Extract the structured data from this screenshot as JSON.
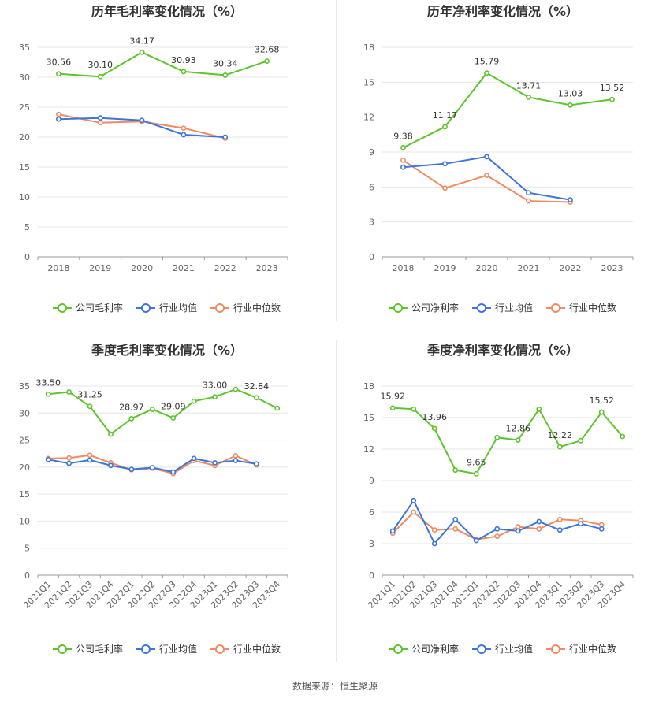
{
  "source": "数据来源：恒生聚源",
  "colors": {
    "company": "#5bc52b",
    "avg": "#3a74dc",
    "median": "#f28a61"
  },
  "chart_data": [
    {
      "type": "line",
      "title": "历年毛利率变化情况（%）",
      "categories": [
        "2018",
        "2019",
        "2020",
        "2021",
        "2022",
        "2023"
      ],
      "ylim": [
        0,
        35
      ],
      "yticks": [
        0,
        5,
        10,
        15,
        20,
        25,
        30,
        35
      ],
      "grid": true,
      "legend_position": "bottom",
      "series": [
        {
          "name": "公司毛利率",
          "values": [
            30.56,
            30.1,
            34.17,
            30.93,
            30.34,
            32.68
          ],
          "labels": [
            "30.56",
            "30.10",
            "34.17",
            "30.93",
            "30.34",
            "32.68"
          ]
        },
        {
          "name": "行业均值",
          "values": [
            23.0,
            23.2,
            22.8,
            20.4,
            20.0,
            null
          ]
        },
        {
          "name": "行业中位数",
          "values": [
            23.8,
            22.4,
            22.6,
            21.5,
            19.8,
            null
          ]
        }
      ]
    },
    {
      "type": "line",
      "title": "历年净利率变化情况（%）",
      "categories": [
        "2018",
        "2019",
        "2020",
        "2021",
        "2022",
        "2023"
      ],
      "ylim": [
        0,
        18
      ],
      "yticks": [
        0,
        3,
        6,
        9,
        12,
        15,
        18
      ],
      "grid": true,
      "legend_position": "bottom",
      "series": [
        {
          "name": "公司净利率",
          "values": [
            9.38,
            11.17,
            15.79,
            13.71,
            13.03,
            13.52
          ],
          "labels": [
            "9.38",
            "11.17",
            "15.79",
            "13.71",
            "13.03",
            "13.52"
          ]
        },
        {
          "name": "行业均值",
          "values": [
            7.7,
            8.0,
            8.6,
            5.5,
            4.9,
            null
          ]
        },
        {
          "name": "行业中位数",
          "values": [
            8.3,
            5.9,
            7.0,
            4.8,
            4.7,
            null
          ]
        }
      ]
    },
    {
      "type": "line",
      "title": "季度毛利率变化情况（%）",
      "categories": [
        "2021Q1",
        "2021Q2",
        "2021Q3",
        "2021Q4",
        "2022Q1",
        "2022Q2",
        "2022Q3",
        "2022Q4",
        "2023Q1",
        "2023Q2",
        "2023Q3",
        "2023Q4"
      ],
      "ylim": [
        0,
        35
      ],
      "yticks": [
        0,
        5,
        10,
        15,
        20,
        25,
        30,
        35
      ],
      "grid": true,
      "legend_position": "bottom",
      "series": [
        {
          "name": "公司毛利率",
          "values": [
            33.5,
            33.9,
            31.25,
            26.1,
            28.97,
            30.7,
            29.09,
            32.2,
            33.0,
            34.4,
            32.84,
            30.9
          ],
          "labels": [
            "33.50",
            "",
            "31.25",
            "",
            "28.97",
            "",
            "29.09",
            "",
            "33.00",
            "",
            "32.84",
            ""
          ]
        },
        {
          "name": "行业均值",
          "values": [
            21.4,
            20.7,
            21.3,
            20.3,
            19.6,
            19.9,
            19.1,
            21.6,
            20.8,
            21.2,
            20.6,
            null
          ]
        },
        {
          "name": "行业中位数",
          "values": [
            21.6,
            21.7,
            22.2,
            20.8,
            19.5,
            19.8,
            18.8,
            21.2,
            20.3,
            22.1,
            20.4,
            null
          ]
        }
      ]
    },
    {
      "type": "line",
      "title": "季度净利率变化情况（%）",
      "categories": [
        "2021Q1",
        "2021Q2",
        "2021Q3",
        "2021Q4",
        "2022Q1",
        "2022Q2",
        "2022Q3",
        "2022Q4",
        "2023Q1",
        "2023Q2",
        "2023Q3",
        "2023Q4"
      ],
      "ylim": [
        0,
        18
      ],
      "yticks": [
        0,
        3,
        6,
        9,
        12,
        15,
        18
      ],
      "grid": true,
      "legend_position": "bottom",
      "series": [
        {
          "name": "公司净利率",
          "values": [
            15.92,
            15.8,
            13.96,
            10.0,
            9.65,
            13.1,
            12.86,
            15.8,
            12.22,
            12.8,
            15.52,
            13.2
          ],
          "labels": [
            "15.92",
            "",
            "13.96",
            "",
            "9.65",
            "",
            "12.86",
            "",
            "12.22",
            "",
            "15.52",
            ""
          ]
        },
        {
          "name": "行业均值",
          "values": [
            4.2,
            7.1,
            3.0,
            5.3,
            3.3,
            4.4,
            4.2,
            5.1,
            4.3,
            4.9,
            4.4,
            null
          ]
        },
        {
          "name": "行业中位数",
          "values": [
            4.0,
            6.0,
            4.3,
            4.4,
            3.4,
            3.7,
            4.6,
            4.4,
            5.3,
            5.2,
            4.8,
            null
          ]
        }
      ]
    }
  ]
}
